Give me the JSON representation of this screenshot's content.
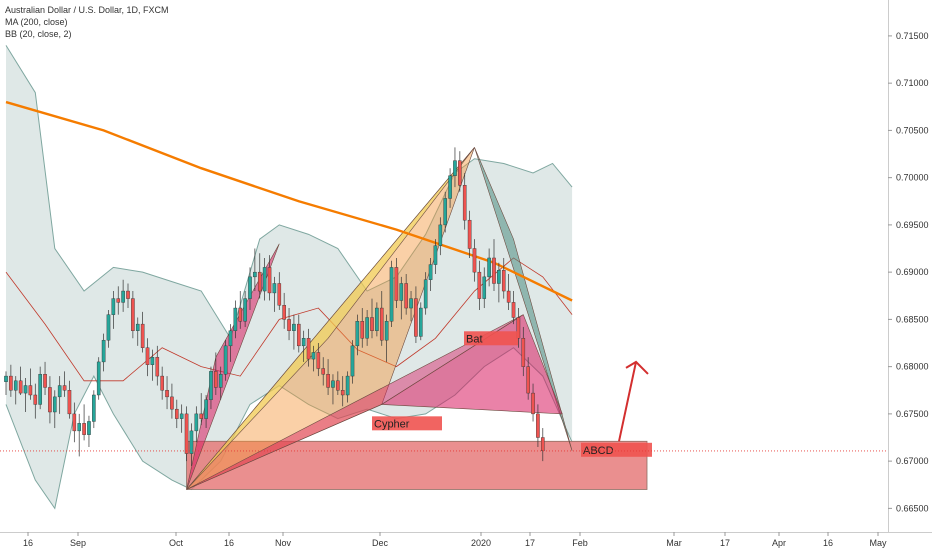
{
  "legend": {
    "symbol": "Australian Dollar / U.S. Dollar, 1D, FXCM",
    "ma": "MA (200, close)",
    "bb": "BB (20, close, 2)"
  },
  "colors": {
    "up": "#26a69a",
    "down": "#ef5350",
    "ma200": "#f57c00",
    "bb_basis": "#c0392b",
    "bb_band": "#7fa7a0",
    "bb_fill": "#b9cdc9",
    "price_line": "#e53935",
    "zone": "#e57373",
    "label_bg": "#ef5350"
  },
  "chart_data": {
    "type": "candlestick",
    "x_axis_labels": [
      "16",
      "Sep",
      "Oct",
      "16",
      "Nov",
      "Dec",
      "2020",
      "17",
      "Feb",
      "Mar",
      "17",
      "Apr",
      "16",
      "May"
    ],
    "y_ticks": [
      "0.71500",
      "0.71000",
      "0.70500",
      "0.70000",
      "0.69500",
      "0.69000",
      "0.68500",
      "0.68000",
      "0.67500",
      "0.67000",
      "0.66500"
    ],
    "ylim": [
      0.6625,
      0.7188
    ],
    "current_price": "0.67108",
    "candles": [
      [
        0.6784,
        0.6795,
        0.677,
        0.679
      ],
      [
        0.679,
        0.6802,
        0.6768,
        0.6775
      ],
      [
        0.6775,
        0.679,
        0.676,
        0.6785
      ],
      [
        0.6785,
        0.68,
        0.677,
        0.6772
      ],
      [
        0.6772,
        0.6788,
        0.6752,
        0.678
      ],
      [
        0.678,
        0.6798,
        0.6765,
        0.677
      ],
      [
        0.677,
        0.6782,
        0.6745,
        0.676
      ],
      [
        0.676,
        0.68,
        0.6755,
        0.6792
      ],
      [
        0.6792,
        0.6805,
        0.677,
        0.6778
      ],
      [
        0.6778,
        0.679,
        0.674,
        0.6752
      ],
      [
        0.6752,
        0.6775,
        0.6735,
        0.6768
      ],
      [
        0.6768,
        0.679,
        0.675,
        0.678
      ],
      [
        0.678,
        0.6795,
        0.6768,
        0.6775
      ],
      [
        0.6775,
        0.6785,
        0.6745,
        0.675
      ],
      [
        0.675,
        0.6762,
        0.672,
        0.6732
      ],
      [
        0.6732,
        0.675,
        0.6705,
        0.674
      ],
      [
        0.674,
        0.676,
        0.6722,
        0.6728
      ],
      [
        0.6728,
        0.6748,
        0.6715,
        0.6742
      ],
      [
        0.6742,
        0.6775,
        0.6735,
        0.677
      ],
      [
        0.677,
        0.681,
        0.6765,
        0.6805
      ],
      [
        0.6805,
        0.6835,
        0.6795,
        0.6828
      ],
      [
        0.6828,
        0.686,
        0.682,
        0.6855
      ],
      [
        0.6855,
        0.688,
        0.684,
        0.6872
      ],
      [
        0.6872,
        0.6885,
        0.6855,
        0.6868
      ],
      [
        0.6868,
        0.6892,
        0.6858,
        0.688
      ],
      [
        0.688,
        0.6888,
        0.6862,
        0.6872
      ],
      [
        0.6872,
        0.688,
        0.683,
        0.6838
      ],
      [
        0.6838,
        0.6852,
        0.6822,
        0.6845
      ],
      [
        0.6845,
        0.6858,
        0.6815,
        0.682
      ],
      [
        0.682,
        0.683,
        0.679,
        0.6802
      ],
      [
        0.6802,
        0.6818,
        0.6785,
        0.681
      ],
      [
        0.681,
        0.6822,
        0.678,
        0.679
      ],
      [
        0.679,
        0.68,
        0.6765,
        0.6775
      ],
      [
        0.6775,
        0.679,
        0.6755,
        0.6768
      ],
      [
        0.6768,
        0.6782,
        0.6745,
        0.6755
      ],
      [
        0.6755,
        0.6765,
        0.6735,
        0.6745
      ],
      [
        0.6745,
        0.676,
        0.673,
        0.675
      ],
      [
        0.675,
        0.6758,
        0.67,
        0.6708
      ],
      [
        0.6708,
        0.674,
        0.6695,
        0.6732
      ],
      [
        0.6732,
        0.6758,
        0.672,
        0.675
      ],
      [
        0.675,
        0.6772,
        0.6738,
        0.6745
      ],
      [
        0.6745,
        0.677,
        0.6735,
        0.6765
      ],
      [
        0.6765,
        0.68,
        0.6755,
        0.6795
      ],
      [
        0.6795,
        0.6815,
        0.677,
        0.6778
      ],
      [
        0.6778,
        0.68,
        0.6765,
        0.6792
      ],
      [
        0.6792,
        0.6828,
        0.6785,
        0.6822
      ],
      [
        0.6822,
        0.6845,
        0.6805,
        0.6838
      ],
      [
        0.6838,
        0.687,
        0.683,
        0.6862
      ],
      [
        0.6862,
        0.688,
        0.684,
        0.6848
      ],
      [
        0.6848,
        0.688,
        0.6842,
        0.6872
      ],
      [
        0.6872,
        0.6905,
        0.686,
        0.6895
      ],
      [
        0.6895,
        0.6925,
        0.688,
        0.69
      ],
      [
        0.69,
        0.692,
        0.6872,
        0.688
      ],
      [
        0.688,
        0.6915,
        0.687,
        0.6905
      ],
      [
        0.6905,
        0.6918,
        0.687,
        0.6878
      ],
      [
        0.6878,
        0.6895,
        0.6858,
        0.6888
      ],
      [
        0.6888,
        0.69,
        0.686,
        0.6865
      ],
      [
        0.6865,
        0.6878,
        0.684,
        0.685
      ],
      [
        0.685,
        0.6862,
        0.6828,
        0.6838
      ],
      [
        0.6838,
        0.6855,
        0.6818,
        0.6845
      ],
      [
        0.6845,
        0.6855,
        0.6815,
        0.6822
      ],
      [
        0.6822,
        0.6838,
        0.6805,
        0.683
      ],
      [
        0.683,
        0.684,
        0.68,
        0.6808
      ],
      [
        0.6808,
        0.6822,
        0.6795,
        0.6815
      ],
      [
        0.6815,
        0.6825,
        0.679,
        0.6798
      ],
      [
        0.6798,
        0.681,
        0.678,
        0.6792
      ],
      [
        0.6792,
        0.6808,
        0.677,
        0.6778
      ],
      [
        0.6778,
        0.6792,
        0.676,
        0.6785
      ],
      [
        0.6785,
        0.6795,
        0.677,
        0.6775
      ],
      [
        0.6775,
        0.679,
        0.6758,
        0.677
      ],
      [
        0.677,
        0.6795,
        0.6762,
        0.679
      ],
      [
        0.679,
        0.6828,
        0.6782,
        0.6822
      ],
      [
        0.6822,
        0.6855,
        0.6812,
        0.6848
      ],
      [
        0.6848,
        0.6862,
        0.682,
        0.683
      ],
      [
        0.683,
        0.686,
        0.6822,
        0.6852
      ],
      [
        0.6852,
        0.6872,
        0.683,
        0.6838
      ],
      [
        0.6838,
        0.6868,
        0.6832,
        0.6862
      ],
      [
        0.6862,
        0.688,
        0.6822,
        0.6828
      ],
      [
        0.6828,
        0.6855,
        0.6805,
        0.6848
      ],
      [
        0.6848,
        0.6912,
        0.6842,
        0.6905
      ],
      [
        0.6905,
        0.6915,
        0.6862,
        0.687
      ],
      [
        0.687,
        0.6895,
        0.685,
        0.6888
      ],
      [
        0.6888,
        0.6898,
        0.6855,
        0.6862
      ],
      [
        0.6862,
        0.688,
        0.6848,
        0.6872
      ],
      [
        0.6872,
        0.6885,
        0.6825,
        0.6832
      ],
      [
        0.6832,
        0.6868,
        0.6828,
        0.6862
      ],
      [
        0.6862,
        0.69,
        0.6855,
        0.6892
      ],
      [
        0.6892,
        0.6915,
        0.688,
        0.6908
      ],
      [
        0.6908,
        0.6935,
        0.6898,
        0.6928
      ],
      [
        0.6928,
        0.6958,
        0.6918,
        0.695
      ],
      [
        0.695,
        0.6985,
        0.6942,
        0.6978
      ],
      [
        0.6978,
        0.701,
        0.6968,
        0.7002
      ],
      [
        0.7002,
        0.7032,
        0.699,
        0.7018
      ],
      [
        0.7018,
        0.7028,
        0.6985,
        0.6992
      ],
      [
        0.6992,
        0.7005,
        0.6945,
        0.6955
      ],
      [
        0.6955,
        0.6965,
        0.6915,
        0.6925
      ],
      [
        0.6925,
        0.6935,
        0.689,
        0.69
      ],
      [
        0.69,
        0.6912,
        0.686,
        0.6872
      ],
      [
        0.6872,
        0.6905,
        0.6862,
        0.6895
      ],
      [
        0.6895,
        0.6925,
        0.6885,
        0.6915
      ],
      [
        0.6915,
        0.6935,
        0.688,
        0.6888
      ],
      [
        0.6888,
        0.691,
        0.6868,
        0.6902
      ],
      [
        0.6902,
        0.6915,
        0.6872,
        0.688
      ],
      [
        0.688,
        0.6898,
        0.686,
        0.6868
      ],
      [
        0.6868,
        0.688,
        0.6845,
        0.6852
      ],
      [
        0.6852,
        0.6862,
        0.682,
        0.683
      ],
      [
        0.683,
        0.6842,
        0.679,
        0.68
      ],
      [
        0.68,
        0.681,
        0.6765,
        0.6772
      ],
      [
        0.6772,
        0.6782,
        0.6742,
        0.675
      ],
      [
        0.675,
        0.676,
        0.6715,
        0.6725
      ],
      [
        0.6725,
        0.6735,
        0.67,
        0.6711
      ]
    ],
    "ma200": [
      [
        0,
        0.708
      ],
      [
        20,
        0.705
      ],
      [
        40,
        0.701
      ],
      [
        60,
        0.6975
      ],
      [
        80,
        0.6945
      ],
      [
        100,
        0.691
      ],
      [
        116,
        0.687
      ]
    ],
    "bb_basis": [
      [
        0,
        0.69
      ],
      [
        8,
        0.6845
      ],
      [
        16,
        0.6785
      ],
      [
        24,
        0.6785
      ],
      [
        32,
        0.682
      ],
      [
        40,
        0.68
      ],
      [
        48,
        0.679
      ],
      [
        56,
        0.685
      ],
      [
        64,
        0.6862
      ],
      [
        72,
        0.6818
      ],
      [
        80,
        0.68
      ],
      [
        88,
        0.683
      ],
      [
        96,
        0.688
      ],
      [
        104,
        0.6915
      ],
      [
        110,
        0.6895
      ],
      [
        116,
        0.6855
      ]
    ],
    "bb_upper": [
      [
        0,
        0.714
      ],
      [
        6,
        0.709
      ],
      [
        10,
        0.6925
      ],
      [
        16,
        0.688
      ],
      [
        22,
        0.6905
      ],
      [
        28,
        0.69
      ],
      [
        34,
        0.689
      ],
      [
        40,
        0.688
      ],
      [
        46,
        0.683
      ],
      [
        52,
        0.6935
      ],
      [
        56,
        0.695
      ],
      [
        62,
        0.694
      ],
      [
        68,
        0.6925
      ],
      [
        74,
        0.688
      ],
      [
        80,
        0.6895
      ],
      [
        86,
        0.694
      ],
      [
        92,
        0.7005
      ],
      [
        96,
        0.702
      ],
      [
        102,
        0.7015
      ],
      [
        108,
        0.7005
      ],
      [
        112,
        0.7015
      ],
      [
        116,
        0.699
      ]
    ],
    "bb_lower": [
      [
        0,
        0.676
      ],
      [
        6,
        0.668
      ],
      [
        10,
        0.665
      ],
      [
        14,
        0.675
      ],
      [
        18,
        0.679
      ],
      [
        22,
        0.675
      ],
      [
        28,
        0.67
      ],
      [
        34,
        0.668
      ],
      [
        38,
        0.667
      ],
      [
        44,
        0.67
      ],
      [
        50,
        0.676
      ],
      [
        56,
        0.678
      ],
      [
        62,
        0.676
      ],
      [
        68,
        0.6745
      ],
      [
        74,
        0.6755
      ],
      [
        80,
        0.6745
      ],
      [
        86,
        0.675
      ],
      [
        92,
        0.677
      ],
      [
        98,
        0.68
      ],
      [
        104,
        0.682
      ],
      [
        110,
        0.679
      ],
      [
        116,
        0.672
      ]
    ],
    "zone": {
      "top": 0.6721,
      "bottom": 0.667
    },
    "patterns": [
      {
        "name": "pink-xabcd-left",
        "fill": "rgba(216,27,96,0.55)",
        "points": [
          [
            0.667,
            0.667
          ],
          [
            0.693,
            0.693
          ],
          [
            0.681,
            0.681
          ]
        ]
      },
      {
        "name": "orange-triangle-1",
        "fill": "rgba(245,150,60,0.45)",
        "points": [
          [
            0.667,
            0.667
          ],
          [
            0.7032,
            0.7032
          ],
          [
            0.676,
            0.676
          ]
        ]
      },
      {
        "name": "yellow-triangle",
        "fill": "rgba(240,220,90,0.55)",
        "points": [
          [
            0.667,
            0.667
          ],
          [
            0.7032,
            0.7032
          ],
          [
            0.683,
            0.683
          ]
        ]
      },
      {
        "name": "pink-cypher",
        "fill": "rgba(216,27,96,0.45)",
        "points": [
          [
            0.667,
            0.667
          ],
          [
            0.676,
            0.676
          ],
          [
            0.6855,
            0.6855
          ]
        ]
      },
      {
        "name": "teal-right",
        "fill": "rgba(77,140,130,0.55)",
        "points": [
          [
            0.7032,
            0.7032
          ],
          [
            0.6711,
            0.6711
          ],
          [
            0.6935,
            0.6935
          ]
        ]
      },
      {
        "name": "pink-bat",
        "fill": "rgba(216,27,96,0.55)",
        "points": [
          [
            0.676,
            0.676
          ],
          [
            0.6855,
            0.6855
          ],
          [
            0.675,
            0.675
          ]
        ]
      }
    ],
    "labels": [
      {
        "text": "Bat",
        "price": 0.683
      },
      {
        "text": "Cypher",
        "price": 0.674
      },
      {
        "text": "ABCD",
        "price": 0.6712
      }
    ],
    "arrow": {
      "from": 0.6721,
      "to": 0.6805
    }
  }
}
